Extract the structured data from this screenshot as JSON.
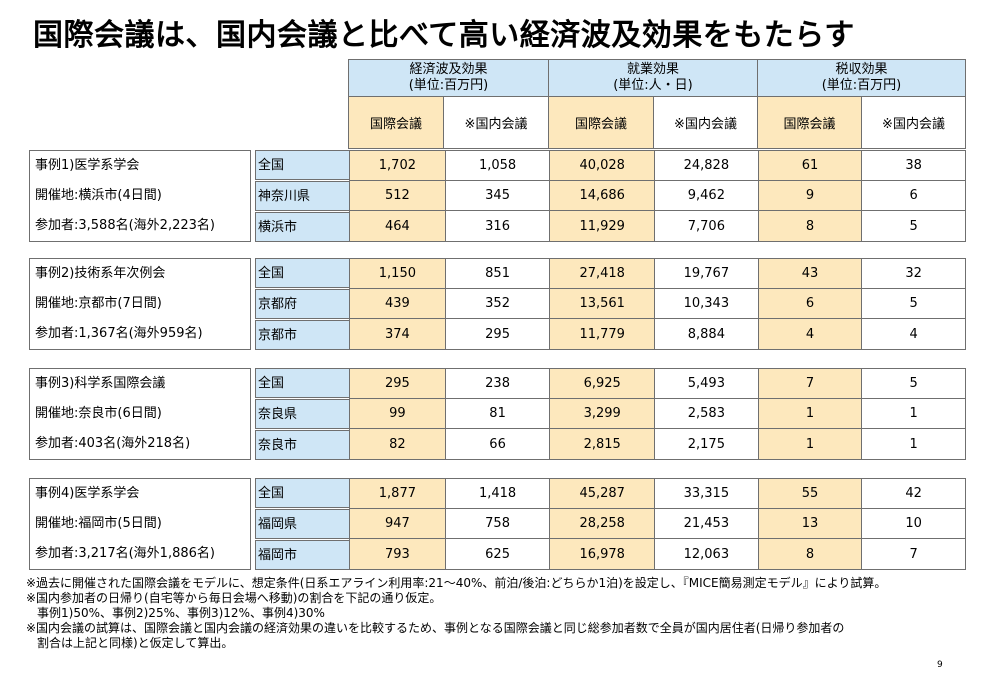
{
  "title": "国際会議は、国内会議と比べて高い経済波及効果をもたらす",
  "headers": [
    {
      "name": "経済波及効果",
      "unit": "(単位:百万円)"
    },
    {
      "name": "就業効果",
      "unit": "(単位:人・日)"
    },
    {
      "name": "税収効果",
      "unit": "(単位:百万円)"
    }
  ],
  "subheaders": [
    "国際会議",
    "※国内会議"
  ],
  "cases": [
    {
      "lines": [
        "事例1)医学系学会",
        "開催地:横浜市(4日間)",
        "参加者:3,588名(海外2,223名)"
      ],
      "rows": [
        {
          "region": "全国",
          "values": [
            "1,702",
            "1,058",
            "40,028",
            "24,828",
            "61",
            "38"
          ]
        },
        {
          "region": "神奈川県",
          "values": [
            "512",
            "345",
            "14,686",
            "9,462",
            "9",
            "6"
          ]
        },
        {
          "region": "横浜市",
          "values": [
            "464",
            "316",
            "11,929",
            "7,706",
            "8",
            "5"
          ]
        }
      ]
    },
    {
      "lines": [
        "事例2)技術系年次例会",
        "開催地:京都市(7日間)",
        "参加者:1,367名(海外959名)"
      ],
      "rows": [
        {
          "region": "全国",
          "values": [
            "1,150",
            "851",
            "27,418",
            "19,767",
            "43",
            "32"
          ]
        },
        {
          "region": "京都府",
          "values": [
            "439",
            "352",
            "13,561",
            "10,343",
            "6",
            "5"
          ]
        },
        {
          "region": "京都市",
          "values": [
            "374",
            "295",
            "11,779",
            "8,884",
            "4",
            "4"
          ]
        }
      ]
    },
    {
      "lines": [
        "事例3)科学系国際会議",
        "開催地:奈良市(6日間)",
        "参加者:403名(海外218名)"
      ],
      "rows": [
        {
          "region": "全国",
          "values": [
            "295",
            "238",
            "6,925",
            "5,493",
            "7",
            "5"
          ]
        },
        {
          "region": "奈良県",
          "values": [
            "99",
            "81",
            "3,299",
            "2,583",
            "1",
            "1"
          ]
        },
        {
          "region": "奈良市",
          "values": [
            "82",
            "66",
            "2,815",
            "2,175",
            "1",
            "1"
          ]
        }
      ]
    },
    {
      "lines": [
        "事例4)医学系学会",
        "開催地:福岡市(5日間)",
        "参加者:3,217名(海外1,886名)"
      ],
      "rows": [
        {
          "region": "全国",
          "values": [
            "1,877",
            "1,418",
            "45,287",
            "33,315",
            "55",
            "42"
          ]
        },
        {
          "region": "福岡県",
          "values": [
            "947",
            "758",
            "28,258",
            "21,453",
            "13",
            "10"
          ]
        },
        {
          "region": "福岡市",
          "values": [
            "793",
            "625",
            "16,978",
            "12,063",
            "8",
            "7"
          ]
        }
      ]
    }
  ],
  "notes": [
    "※過去に開催された国際会議をモデルに、想定条件(日系エアライン利用率:21～40%、前泊/後泊:どちらか1泊)を設定し、『MICE簡易測定モデル』により試算。",
    "※国内参加者の日帰り(自宅等から毎日会場へ移動)の割合を下記の通り仮定。",
    "事例1)50%、事例2)25%、事例3)12%、事例4)30%",
    "※国内会議の試算は、国際会議と国内会議の経済効果の違いを比較するため、事例となる国際会議と同じ総参加者数で全員が国内居住者(日帰り参加者の",
    "割合は上記と同様)と仮定して算出。"
  ],
  "page_number": "9"
}
